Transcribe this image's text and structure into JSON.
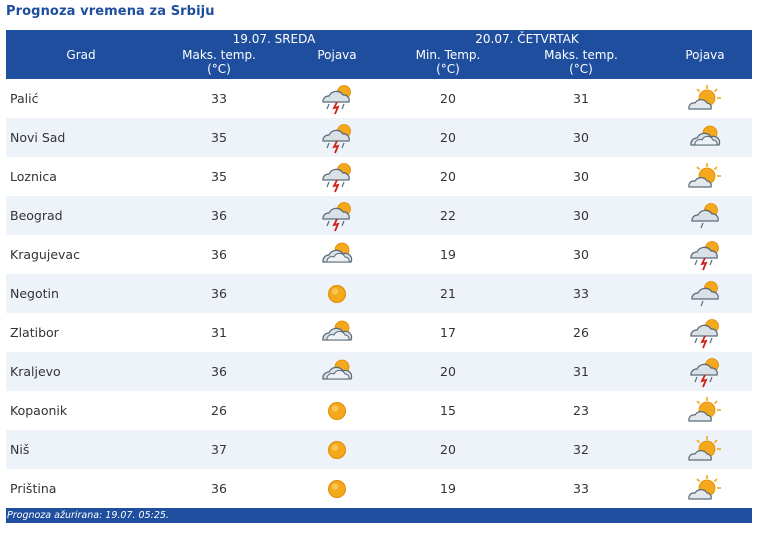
{
  "page": {
    "title": "Prognoza vremena za Srbiju"
  },
  "header": {
    "city_label": "Grad",
    "day1": {
      "date": "19.07. SREDA",
      "max_label": "Maks. temp.",
      "max_unit": "(°C)",
      "icon_label": "Pojava"
    },
    "day2": {
      "date": "20.07. ČETVRTAK",
      "min_label": "Min. Temp.",
      "min_unit": "(°C)",
      "max_label": "Maks. temp.",
      "max_unit": "(°C)",
      "icon_label": "Pojava"
    }
  },
  "rows": [
    {
      "city": "Palić",
      "d1_max": "33",
      "d1_icon": "storm-cloud-icon",
      "d2_min": "20",
      "d2_max": "31",
      "d2_icon": "sun-cloud-icon"
    },
    {
      "city": "Novi Sad",
      "d1_max": "35",
      "d1_icon": "storm-cloud-icon",
      "d2_min": "20",
      "d2_max": "30",
      "d2_icon": "partly-cloudy-icon"
    },
    {
      "city": "Loznica",
      "d1_max": "35",
      "d1_icon": "storm-cloud-icon",
      "d2_min": "20",
      "d2_max": "30",
      "d2_icon": "sun-cloud-icon"
    },
    {
      "city": "Beograd",
      "d1_max": "36",
      "d1_icon": "storm-cloud-icon",
      "d2_min": "22",
      "d2_max": "30",
      "d2_icon": "light-shower-icon"
    },
    {
      "city": "Kragujevac",
      "d1_max": "36",
      "d1_icon": "partly-cloudy-icon",
      "d2_min": "19",
      "d2_max": "30",
      "d2_icon": "storm-cloud-icon"
    },
    {
      "city": "Negotin",
      "d1_max": "36",
      "d1_icon": "sun-icon",
      "d2_min": "21",
      "d2_max": "33",
      "d2_icon": "light-shower-icon"
    },
    {
      "city": "Zlatibor",
      "d1_max": "31",
      "d1_icon": "partly-cloudy-icon",
      "d2_min": "17",
      "d2_max": "26",
      "d2_icon": "storm-cloud-icon"
    },
    {
      "city": "Kraljevo",
      "d1_max": "36",
      "d1_icon": "partly-cloudy-icon",
      "d2_min": "20",
      "d2_max": "31",
      "d2_icon": "storm-cloud-icon"
    },
    {
      "city": "Kopaonik",
      "d1_max": "26",
      "d1_icon": "sun-icon",
      "d2_min": "15",
      "d2_max": "23",
      "d2_icon": "sun-cloud-icon"
    },
    {
      "city": "Niš",
      "d1_max": "37",
      "d1_icon": "sun-icon",
      "d2_min": "20",
      "d2_max": "32",
      "d2_icon": "sun-cloud-icon"
    },
    {
      "city": "Priština",
      "d1_max": "36",
      "d1_icon": "sun-icon",
      "d2_min": "19",
      "d2_max": "33",
      "d2_icon": "sun-cloud-icon"
    }
  ],
  "footer": {
    "updated": "Prognoza ažurirana:  19.07. 05:25."
  },
  "colors": {
    "header_bg": "#1f4e9e",
    "row_alt": "#eef3fa",
    "sun": "#f4a81c",
    "cloud": "#c9d3dc",
    "lightning": "#d0201a"
  }
}
